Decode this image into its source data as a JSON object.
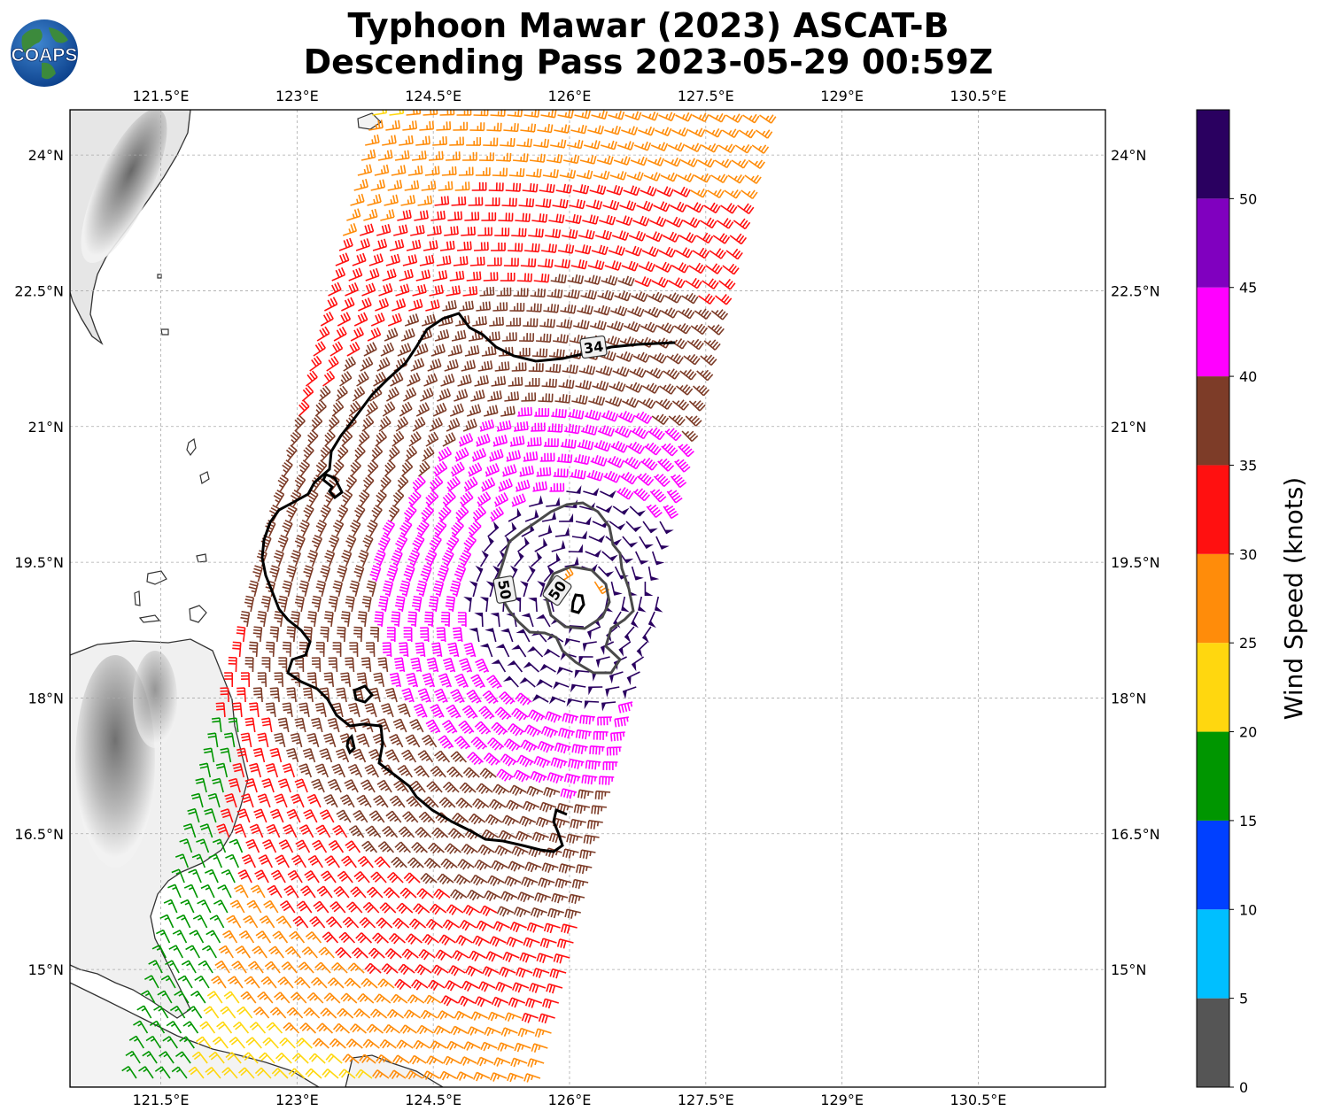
{
  "header": {
    "title_line1": "Typhoon Mawar (2023) ASCAT-B",
    "title_line2": "Descending Pass 2023-05-29 00:59Z",
    "logo_text": "COAPS"
  },
  "map": {
    "lon_ticks": [
      "121.5°E",
      "123°E",
      "124.5°E",
      "126°E",
      "127.5°E",
      "129°E",
      "130.5°E"
    ],
    "lat_ticks": [
      "24°N",
      "22.5°N",
      "21°N",
      "19.5°N",
      "18°N",
      "16.5°N",
      "15°N"
    ],
    "lon_values": [
      121.5,
      123,
      124.5,
      126,
      127.5,
      129,
      130.5
    ],
    "lat_values": [
      24,
      22.5,
      21,
      19.5,
      18,
      16.5,
      15
    ],
    "extent": {
      "lon": [
        120.5,
        131.9
      ],
      "lat": [
        13.7,
        24.5
      ]
    },
    "storm_center": {
      "lon": 126.1,
      "lat": 19.1
    },
    "contour_labels": [
      "34",
      "50",
      "50"
    ],
    "grid": true
  },
  "colorbar": {
    "label": "Wind Speed (knots)",
    "ticks": [
      "0",
      "5",
      "10",
      "15",
      "20",
      "25",
      "30",
      "35",
      "40",
      "45",
      "50"
    ],
    "bins": [
      {
        "min": 0,
        "max": 5,
        "color": "#555555"
      },
      {
        "min": 5,
        "max": 10,
        "color": "#00bfff"
      },
      {
        "min": 10,
        "max": 15,
        "color": "#0040ff"
      },
      {
        "min": 15,
        "max": 20,
        "color": "#009600"
      },
      {
        "min": 20,
        "max": 25,
        "color": "#ffd70f"
      },
      {
        "min": 25,
        "max": 30,
        "color": "#ff8c0a"
      },
      {
        "min": 30,
        "max": 35,
        "color": "#ff1010"
      },
      {
        "min": 35,
        "max": 40,
        "color": "#7d3c28"
      },
      {
        "min": 40,
        "max": 45,
        "color": "#ff00ff"
      },
      {
        "min": 45,
        "max": 50,
        "color": "#8000bf"
      },
      {
        "min": 50,
        "max": 55,
        "color": "#2a0060"
      }
    ]
  }
}
